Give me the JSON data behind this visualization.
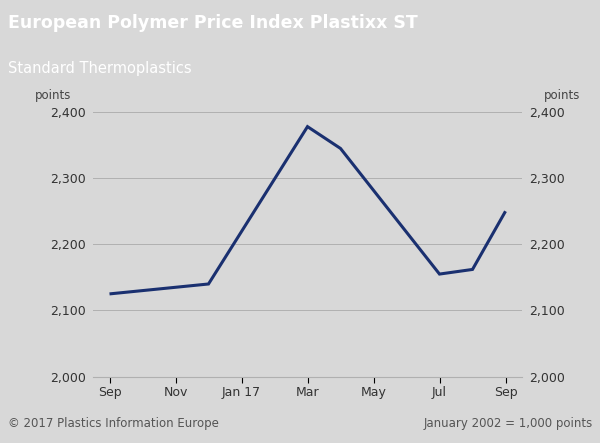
{
  "title_line1": "European Polymer Price Index Plastixx ST",
  "title_line2": "Standard Thermoplastics",
  "header_bg_color": "#1e3799",
  "header_text_color": "#ffffff",
  "chart_bg_color": "#d8d8d8",
  "plot_bg_color": "#d8d8d8",
  "line_color": "#1a3070",
  "line_width": 2.2,
  "x_labels": [
    "Sep",
    "Nov",
    "Jan 17",
    "Mar",
    "May",
    "Jul",
    "Sep"
  ],
  "x_tick_positions": [
    0,
    1,
    2,
    3,
    4,
    5,
    6
  ],
  "y_values": [
    2125,
    2130,
    2140,
    2378,
    2345,
    2155,
    2162,
    2250
  ],
  "x_data": [
    0,
    0.5,
    1.5,
    3.0,
    3.5,
    5.0,
    5.5,
    6.0
  ],
  "ylim": [
    2000,
    2400
  ],
  "yticks": [
    2000,
    2100,
    2200,
    2300,
    2400
  ],
  "ylabel_label": "points",
  "footer_left": "© 2017 Plastics Information Europe",
  "footer_right": "January 2002 = 1,000 points",
  "footer_text_color": "#555555",
  "grid_color": "#b0b0b0",
  "header_separator_color": "#888888",
  "title1_fontsize": 12.5,
  "title2_fontsize": 10.5,
  "tick_labelsize": 9,
  "footer_fontsize": 8.5,
  "points_fontsize": 8.5
}
